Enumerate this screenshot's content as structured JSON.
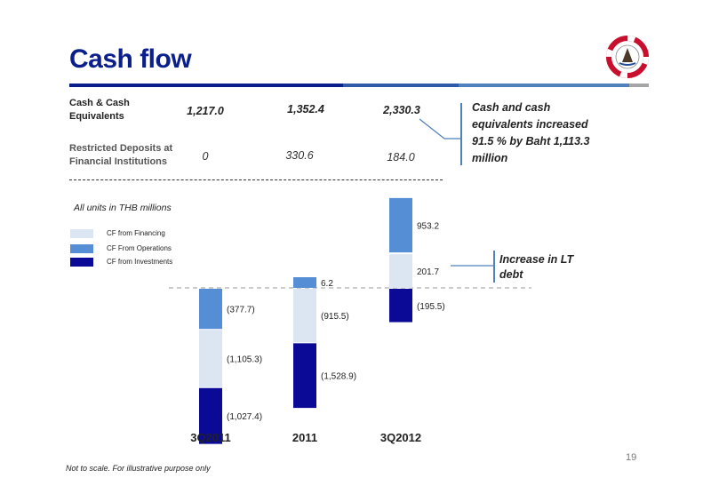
{
  "title": "Cash flow",
  "page_number": "19",
  "footer_note": "Not to scale.  For illustrative purpose only",
  "units_note": "All units in THB millions",
  "summary_table": {
    "rows": [
      {
        "label_line1": "Cash & Cash",
        "label_line2": "Equivalents",
        "values": [
          "1,217.0",
          "1,352.4",
          "2,330.3"
        ]
      },
      {
        "label_line1": "Restricted Deposits at",
        "label_line2": "Financial Institutions",
        "values": [
          "0",
          "330.6",
          "184.0"
        ]
      }
    ]
  },
  "callout_cash": {
    "line1": "Cash and cash",
    "line2": "equivalents increased",
    "line3": "91.5 % by Baht 1,113.3",
    "line4": "million"
  },
  "callout_debt": {
    "line1": "Increase in LT",
    "line2": "debt"
  },
  "legend": [
    {
      "label": "CF from Financing",
      "color": "#dce6f2"
    },
    {
      "label": "CF From Operations",
      "color": "#558ed5"
    },
    {
      "label": "CF from Investments",
      "color": "#0a0a96"
    }
  ],
  "colors": {
    "title": "#0a1e8c",
    "rule_dark": "#0a1e8c",
    "rule_mid": "#2f5aa8",
    "rule_light": "#4f81bd",
    "rule_grey": "#a6a6a6",
    "accent_blue": "#4f81bd"
  },
  "chart_data": {
    "type": "bar",
    "stacked": true,
    "categories": [
      "3Q2011",
      "2011",
      "3Q2012"
    ],
    "baseline": 0,
    "not_to_scale": true,
    "series": [
      {
        "name": "CF From Operations",
        "values": [
          -377.7,
          6.2,
          953.2
        ],
        "labels": [
          "(377.7)",
          "6.2",
          "953.2"
        ],
        "color": "#558ed5"
      },
      {
        "name": "CF from Financing",
        "values": [
          -1105.3,
          -915.5,
          201.7
        ],
        "labels": [
          "(1,105.3)",
          "(915.5)",
          "201.7"
        ],
        "color": "#dce6f2"
      },
      {
        "name": "CF from Investments",
        "values": [
          -1027.4,
          -1528.9,
          -195.5
        ],
        "labels": [
          "(1,027.4)",
          "(1,528.9)",
          "(195.5)"
        ],
        "color": "#0a0a96"
      }
    ]
  }
}
